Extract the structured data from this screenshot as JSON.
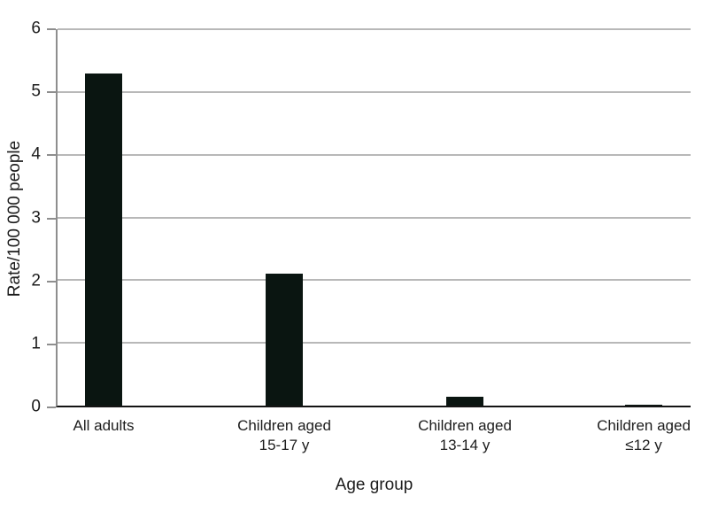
{
  "chart_data": {
    "type": "bar",
    "title": "",
    "xlabel": "Age group",
    "ylabel": "Rate/100 000 people",
    "categories": [
      [
        "All adults"
      ],
      [
        "Children aged",
        "15-17 y"
      ],
      [
        "Children aged",
        "13-14 y"
      ],
      [
        "Children aged",
        "≤12 y"
      ]
    ],
    "values": [
      5.3,
      2.1,
      0.14,
      0.02
    ],
    "ylim": [
      0,
      6
    ],
    "yticks": [
      0,
      1,
      2,
      3,
      4,
      5,
      6
    ],
    "grid": true,
    "legend": false,
    "colors": {
      "bar": "#0a1511",
      "gridline": "#b8b8b8",
      "y_axis": "#8e8e8e",
      "x_axis": "#141414",
      "text": "#1c1c1c",
      "background": "#ffffff"
    }
  }
}
